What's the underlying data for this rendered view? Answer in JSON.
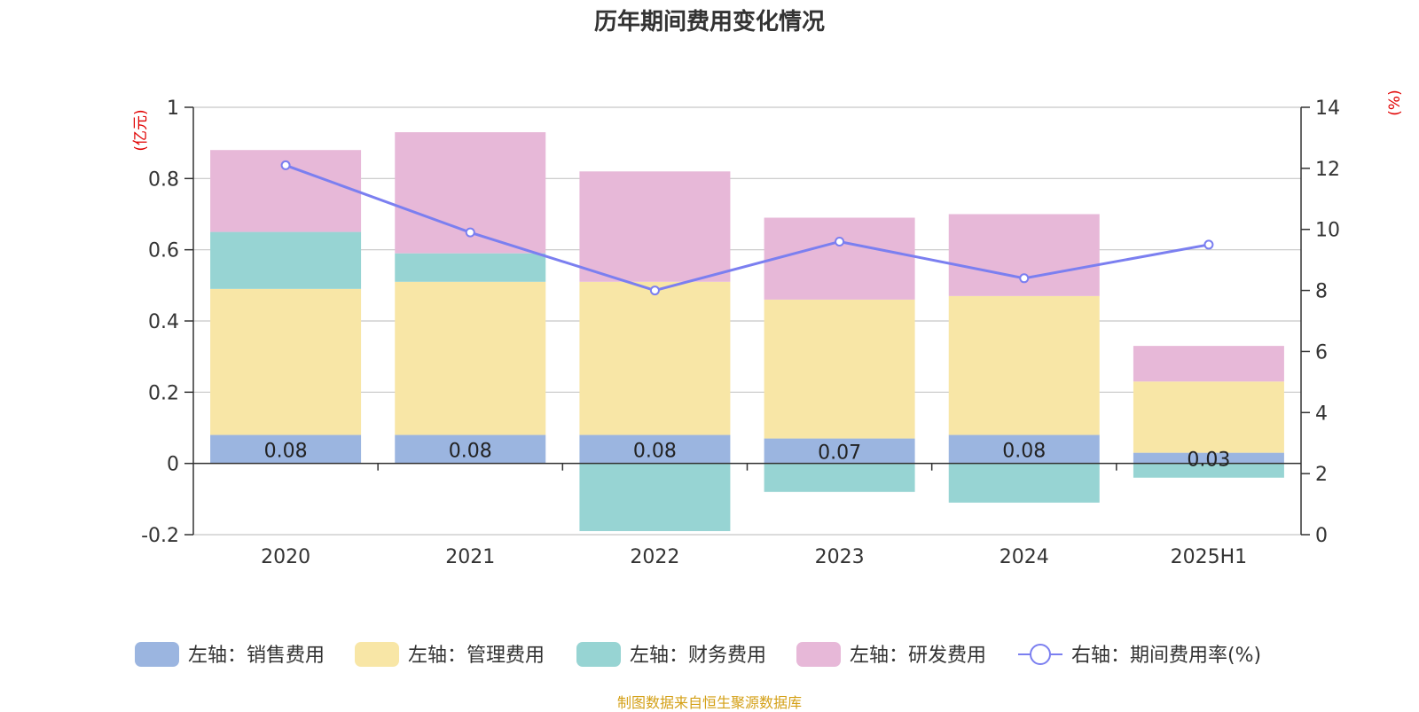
{
  "chart_data": {
    "type": "bar",
    "title": "历年期间费用变化情况",
    "categories": [
      "2020",
      "2021",
      "2022",
      "2023",
      "2024",
      "2025H1"
    ],
    "stacked": true,
    "left_axis": {
      "unit": "(亿元)",
      "ylim": [
        -0.2,
        1
      ],
      "ticks": [
        "1",
        "0.8",
        "0.6",
        "0.4",
        "0.2",
        "0",
        "-0.2"
      ]
    },
    "right_axis": {
      "unit": "(%)",
      "ylim": [
        0,
        14
      ],
      "ticks": [
        "14",
        "12",
        "10",
        "8",
        "6",
        "4",
        "2",
        "0"
      ]
    },
    "series": [
      {
        "name": "左轴：销售费用",
        "axis": "left",
        "type": "bar",
        "color": "#9bb5e0",
        "values": [
          0.08,
          0.08,
          0.08,
          0.07,
          0.08,
          0.03
        ],
        "labels": [
          "0.08",
          "0.08",
          "0.08",
          "0.07",
          "0.08",
          "0.03"
        ]
      },
      {
        "name": "左轴：管理费用",
        "axis": "left",
        "type": "bar",
        "color": "#f8e6a6",
        "values": [
          0.41,
          0.43,
          0.43,
          0.39,
          0.39,
          0.2
        ]
      },
      {
        "name": "左轴：财务费用",
        "axis": "left",
        "type": "bar",
        "color": "#97d4d3",
        "values": [
          0.16,
          0.08,
          -0.19,
          -0.08,
          -0.11,
          -0.04
        ]
      },
      {
        "name": "左轴：研发费用",
        "axis": "left",
        "type": "bar",
        "color": "#e7b8d8",
        "values": [
          0.23,
          0.34,
          0.31,
          0.23,
          0.23,
          0.1
        ]
      },
      {
        "name": "右轴：期间费用率(%)",
        "axis": "right",
        "type": "line",
        "color": "#7b7ff0",
        "values": [
          12.1,
          9.9,
          8.0,
          9.6,
          8.4,
          9.5
        ]
      }
    ],
    "grid": true,
    "legend": "bottom"
  },
  "footer": {
    "source": "制图数据来自恒生聚源数据库"
  }
}
